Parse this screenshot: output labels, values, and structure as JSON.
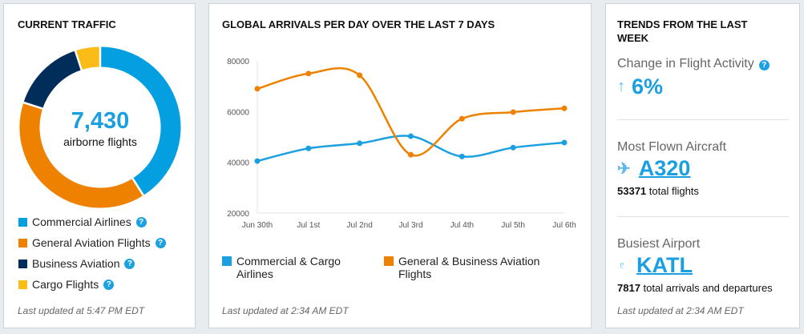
{
  "current_traffic": {
    "title": "CURRENT TRAFFIC",
    "total": "7,430",
    "total_label": "airborne flights",
    "segments": [
      {
        "label": "Commercial Airlines",
        "share_pct": 41,
        "color": "#039fe1"
      },
      {
        "label": "General Aviation Flights",
        "share_pct": 39,
        "color": "#ee8200"
      },
      {
        "label": "Business Aviation",
        "share_pct": 15,
        "color": "#002d5a"
      },
      {
        "label": "Cargo Flights",
        "share_pct": 5,
        "color": "#fcbc18"
      }
    ],
    "help_icon": "question-circle-icon",
    "updated": "Last updated at 5:47 PM EDT"
  },
  "arrivals": {
    "title": "GLOBAL ARRIVALS PER DAY OVER THE LAST 7 DAYS",
    "updated": "Last updated at 2:34 AM EDT",
    "legend": [
      "Commercial & Cargo\nAirlines",
      "General & Business Aviation\nFlights"
    ]
  },
  "chart_data": {
    "type": "line",
    "categories": [
      "Jun 30th",
      "Jul 1st",
      "Jul 2nd",
      "Jul 3rd",
      "Jul 4th",
      "Jul 5th",
      "Jul 6th"
    ],
    "ylim": [
      20000,
      80000
    ],
    "yticks": [
      "20000",
      "40000",
      "60000",
      "80000"
    ],
    "grid": false,
    "legend_position": "bottom",
    "smooth": true,
    "series": [
      {
        "name": "Commercial & Cargo Airlines",
        "color": "#1a9fe0",
        "values": [
          40500,
          45500,
          47500,
          50300,
          42300,
          45800,
          47800
        ]
      },
      {
        "name": "General & Business Aviation Flights",
        "color": "#ee8200",
        "values": [
          69000,
          75000,
          74300,
          43000,
          57200,
          59800,
          61300
        ]
      }
    ]
  },
  "trends": {
    "title": "TRENDS FROM THE LAST WEEK",
    "activity_label": "Change in Flight Activity",
    "activity_value": "6%",
    "activity_icon": "arrow-up-icon",
    "aircraft_label": "Most Flown Aircraft",
    "aircraft_value": "A320",
    "aircraft_icon": "airplane-icon",
    "aircraft_count": "53371",
    "aircraft_count_suffix": " total flights",
    "airport_label": "Busiest Airport",
    "airport_value": "KATL",
    "airport_icon": "control-tower-icon",
    "airport_count": "7817",
    "airport_count_suffix": " total arrivals and departures",
    "updated": "Last updated at 2:34 AM EDT"
  }
}
